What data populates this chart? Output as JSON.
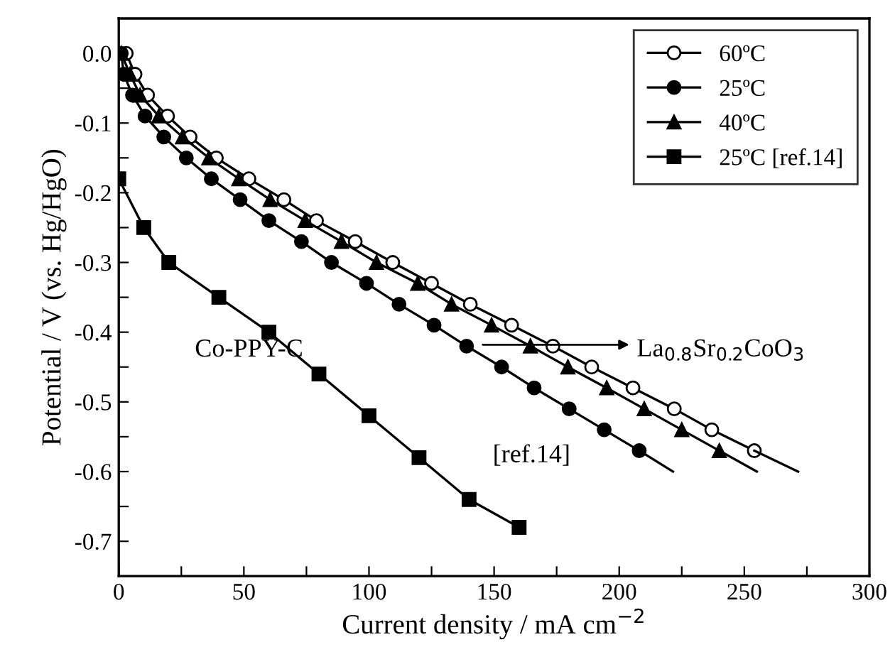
{
  "chart_data": {
    "type": "line",
    "xlabel": "Current density / mA cm$^{−2}$",
    "ylabel": "Potential / V (vs. Hg/HgO)",
    "xlim": [
      0,
      300
    ],
    "ylim": [
      -0.75,
      0.05
    ],
    "xticks": [
      0,
      {
        "value": 25,
        "label": null
      },
      50,
      {
        "value": 75,
        "label": null
      },
      100,
      {
        "value": 125,
        "label": null
      },
      150,
      {
        "value": 175,
        "label": null
      },
      200,
      {
        "value": 225,
        "label": null
      },
      250,
      {
        "value": 275,
        "label": null
      },
      300
    ],
    "yticks": [
      {
        "value": 0,
        "label": "0.0"
      },
      {
        "value": -0.05,
        "label": null
      },
      {
        "value": -0.1,
        "label": "-0.1"
      },
      {
        "value": -0.15,
        "label": null
      },
      {
        "value": -0.2,
        "label": "-0.2"
      },
      {
        "value": -0.25,
        "label": null
      },
      {
        "value": -0.3,
        "label": "-0.3"
      },
      {
        "value": -0.35,
        "label": null
      },
      {
        "value": -0.4,
        "label": "-0.4"
      },
      {
        "value": -0.45,
        "label": null
      },
      {
        "value": -0.5,
        "label": "-0.5"
      },
      {
        "value": -0.55,
        "label": null
      },
      {
        "value": -0.6,
        "label": "-0.6"
      },
      {
        "value": -0.65,
        "label": null
      },
      {
        "value": -0.7,
        "label": "-0.7"
      }
    ],
    "grid": false,
    "legend": "top right",
    "line_style": "solid",
    "series": [
      {
        "name": "60ºC",
        "color": "#000000",
        "marker": "open circle",
        "x": [
          3,
          6.5,
          11.5,
          19.5,
          28.5,
          39,
          52,
          66,
          79,
          94.5,
          109.5,
          125,
          140.5,
          157,
          173.5,
          189,
          205.5,
          222,
          237,
          254
        ],
        "values": [
          0,
          -0.03,
          -0.06,
          -0.09,
          -0.12,
          -0.15,
          -0.18,
          -0.21,
          -0.24,
          -0.27,
          -0.3,
          -0.33,
          -0.36,
          -0.39,
          -0.42,
          -0.45,
          -0.48,
          -0.51,
          -0.54,
          -0.57
        ]
      },
      {
        "name": "25ºC",
        "color": "#000000",
        "marker": "circle",
        "x": [
          1,
          2,
          5.5,
          10.5,
          18,
          27,
          37,
          48.5,
          60,
          73,
          85,
          99,
          112,
          126,
          139,
          153,
          166,
          180,
          194,
          208
        ],
        "values": [
          0,
          -0.03,
          -0.06,
          -0.09,
          -0.12,
          -0.15,
          -0.18,
          -0.21,
          -0.24,
          -0.27,
          -0.3,
          -0.33,
          -0.36,
          -0.39,
          -0.42,
          -0.45,
          -0.48,
          -0.51,
          -0.54,
          -0.57
        ]
      },
      {
        "name": "40ºC",
        "color": "#000000",
        "marker": "triangle",
        "x": [
          1,
          4.5,
          8.5,
          16,
          25.5,
          36,
          48,
          60.5,
          74.5,
          89,
          103,
          119.5,
          133,
          149,
          164.5,
          179.5,
          195,
          210,
          225,
          240
        ],
        "values": [
          0,
          -0.03,
          -0.06,
          -0.09,
          -0.12,
          -0.15,
          -0.18,
          -0.21,
          -0.24,
          -0.27,
          -0.3,
          -0.33,
          -0.36,
          -0.39,
          -0.42,
          -0.45,
          -0.48,
          -0.51,
          -0.54,
          -0.57
        ]
      },
      {
        "name": "25ºC [ref.14]",
        "color": "#000000",
        "marker": "square",
        "x": [
          0,
          10,
          20,
          40,
          60,
          80,
          100,
          120,
          140,
          160
        ],
        "values": [
          -0.18,
          -0.25,
          -0.3,
          -0.35,
          -0.4,
          -0.46,
          -0.52,
          -0.58,
          -0.64,
          -0.68
        ]
      },
      {
        "color": "#000000",
        "marker": "none",
        "x": [
          254,
          271.5
        ],
        "values": [
          -0.57,
          -0.6
        ]
      },
      {
        "color": "#000000",
        "marker": "none",
        "x": [
          208,
          221.5
        ],
        "values": [
          -0.57,
          -0.6
        ]
      },
      {
        "color": "#000000",
        "marker": "none",
        "x": [
          240,
          255
        ],
        "values": [
          -0.57,
          -0.6
        ]
      }
    ],
    "annotations": [
      "La$_{0.8}$Sr$_{0.2}$CoO$_{3}$",
      {
        "text": "Co-PPY-C",
        "x": 80,
        "y": -0.46
      },
      {
        "text": "[ref.14]",
        "x": 140,
        "y": -0.64
      }
    ]
  }
}
